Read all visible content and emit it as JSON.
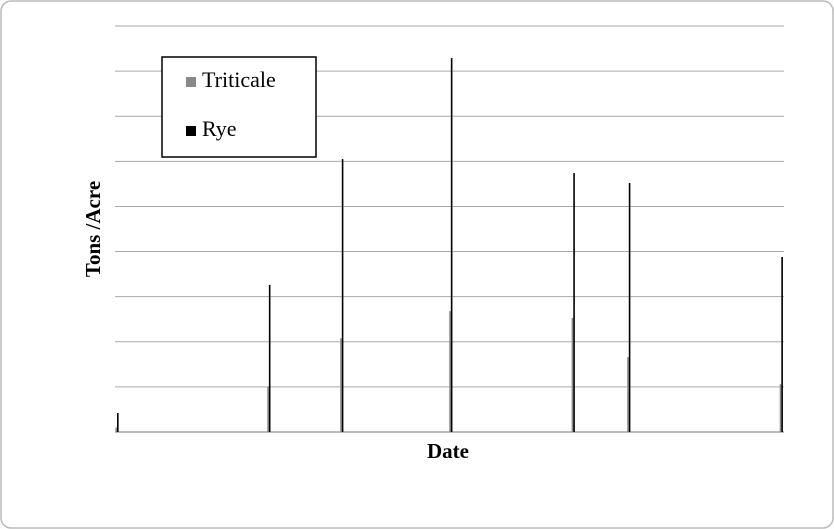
{
  "chart_data": {
    "type": "bar",
    "x_label": "Date",
    "y_label": "Tons /Acre",
    "x": [
      0.3,
      23.0,
      33.9,
      50.2,
      68.5,
      76.8,
      99.6
    ],
    "xlim": [
      0,
      100
    ],
    "series": [
      {
        "name": "Triticale",
        "color": "#888888",
        "values": [
          0.1,
          1.0,
          2.08,
          2.68,
          2.53,
          1.66,
          1.06
        ]
      },
      {
        "name": "Rye",
        "color": "#000000",
        "values": [
          0.42,
          3.26,
          6.05,
          8.29,
          5.74,
          5.52,
          3.88
        ]
      }
    ],
    "ylim": [
      0,
      9
    ],
    "yticks": [
      0,
      1,
      2,
      3,
      4,
      5,
      6,
      7,
      8,
      9
    ],
    "tick_labels": false,
    "grid": true,
    "legend": "upper left"
  }
}
